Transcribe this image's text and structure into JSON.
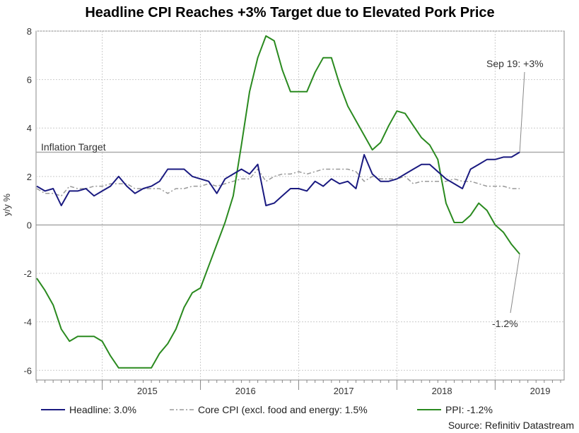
{
  "chart_data": {
    "type": "line",
    "title": "Headline CPI Reaches +3% Target due to Elevated Pork Price",
    "ylabel": "y/y %",
    "xlabel": "",
    "ylim": [
      -6.4,
      8
    ],
    "yticks": [
      8,
      6,
      4,
      2,
      0,
      -2,
      -4,
      -6
    ],
    "year_labels": [
      "2015",
      "2016",
      "2017",
      "2018",
      "2019"
    ],
    "start_month": "2014-05",
    "x_months": 65,
    "grid": true,
    "target": {
      "value": 3,
      "label": "Inflation Target"
    },
    "annotations": {
      "headline_last": "Sep 19: +3%",
      "ppi_last": "-1.2%"
    },
    "source": "Source: Refinitiv Datastream",
    "colors": {
      "headline": "#1a1a80",
      "core": "#999999",
      "ppi": "#2a8a1f"
    },
    "series": [
      {
        "key": "headline",
        "name": "Headline: 3.0%",
        "values": [
          1.6,
          1.4,
          1.5,
          0.8,
          1.4,
          1.4,
          1.5,
          1.2,
          1.4,
          1.6,
          2.0,
          1.6,
          1.3,
          1.5,
          1.6,
          1.8,
          2.3,
          2.3,
          2.3,
          2.0,
          1.9,
          1.8,
          1.3,
          1.9,
          2.1,
          2.3,
          2.1,
          2.5,
          0.8,
          0.9,
          1.2,
          1.5,
          1.5,
          1.4,
          1.8,
          1.6,
          1.9,
          1.7,
          1.8,
          1.5,
          2.9,
          2.1,
          1.8,
          1.8,
          1.9,
          2.1,
          2.3,
          2.5,
          2.5,
          2.2,
          1.9,
          1.7,
          1.5,
          2.3,
          2.5,
          2.7,
          2.7,
          2.8,
          2.8,
          3.0
        ]
      },
      {
        "key": "core",
        "name": "Core CPI (excl. food and energy: 1.5%",
        "values": [
          1.5,
          1.3,
          1.3,
          1.2,
          1.6,
          1.5,
          1.5,
          1.6,
          1.6,
          1.7,
          1.7,
          1.7,
          1.5,
          1.5,
          1.5,
          1.5,
          1.3,
          1.5,
          1.5,
          1.6,
          1.6,
          1.7,
          1.6,
          1.7,
          1.8,
          1.9,
          1.9,
          2.3,
          1.8,
          2.0,
          2.1,
          2.1,
          2.2,
          2.1,
          2.2,
          2.3,
          2.3,
          2.3,
          2.3,
          2.2,
          1.8,
          2.0,
          1.9,
          1.9,
          1.9,
          2.0,
          1.7,
          1.8,
          1.8,
          1.8,
          1.8,
          1.9,
          1.8,
          1.8,
          1.7,
          1.6,
          1.6,
          1.6,
          1.5,
          1.5
        ]
      },
      {
        "key": "ppi",
        "name": "PPI: -1.2%",
        "values": [
          -2.2,
          -2.7,
          -3.3,
          -4.3,
          -4.8,
          -4.6,
          -4.6,
          -4.6,
          -4.8,
          -5.4,
          -5.9,
          -5.9,
          -5.9,
          -5.9,
          -5.9,
          -5.3,
          -4.9,
          -4.3,
          -3.4,
          -2.8,
          -2.6,
          -1.7,
          -0.8,
          0.1,
          1.2,
          3.3,
          5.5,
          6.9,
          7.8,
          7.6,
          6.4,
          5.5,
          5.5,
          5.5,
          6.3,
          6.9,
          6.9,
          5.8,
          4.9,
          4.3,
          3.7,
          3.1,
          3.4,
          4.1,
          4.7,
          4.6,
          4.1,
          3.6,
          3.3,
          2.7,
          0.9,
          0.1,
          0.1,
          0.4,
          0.9,
          0.6,
          0.0,
          -0.3,
          -0.8,
          -1.2
        ]
      }
    ]
  }
}
